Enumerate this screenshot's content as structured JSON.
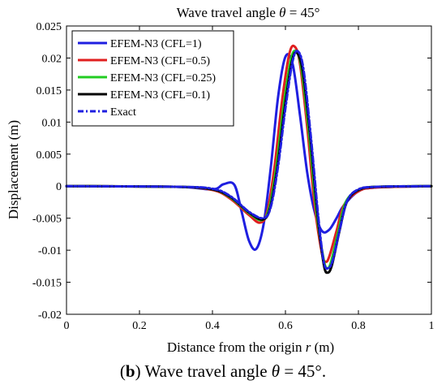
{
  "chart_data": {
    "type": "line",
    "title": "Wave travel angle θ = 45°",
    "title_parts": {
      "text": "Wave travel angle ",
      "symbol": "θ",
      "rest": " = 45°"
    },
    "xlabel": "Distance from the origin r (m)",
    "xlabel_parts": {
      "text": "Distance from the origin ",
      "symbol": "r",
      "rest": " (m)"
    },
    "ylabel": "Displacement (m)",
    "xlim": [
      0,
      1
    ],
    "ylim": [
      -0.02,
      0.025
    ],
    "xticks": [
      0,
      0.2,
      0.4,
      0.6,
      0.8,
      1
    ],
    "xtick_labels": [
      "0",
      "0.2",
      "0.4",
      "0.6",
      "0.8",
      "1"
    ],
    "yticks": [
      -0.02,
      -0.015,
      -0.01,
      -0.005,
      0,
      0.005,
      0.01,
      0.015,
      0.02,
      0.025
    ],
    "ytick_labels": [
      "-0.02",
      "-0.015",
      "-0.01",
      "-0.005",
      "0",
      "0.005",
      "0.01",
      "0.015",
      "0.02",
      "0.025"
    ],
    "grid": false,
    "legend_position": "top-left",
    "series": [
      {
        "name": "EFEM-N3 (CFL=1)",
        "color": "#1f1fe0",
        "dash": "solid",
        "x": [
          0,
          0.3,
          0.4,
          0.43,
          0.46,
          0.48,
          0.5,
          0.52,
          0.54,
          0.56,
          0.58,
          0.6,
          0.62,
          0.64,
          0.66,
          0.68,
          0.7,
          0.72,
          0.74,
          0.76,
          0.8,
          0.85,
          1
        ],
        "y": [
          0,
          -0.0001,
          -0.0005,
          0.0003,
          0.0002,
          -0.004,
          -0.0085,
          -0.0098,
          -0.006,
          0.003,
          0.014,
          0.0202,
          0.019,
          0.011,
          0.002,
          -0.004,
          -0.007,
          -0.0068,
          -0.005,
          -0.003,
          -0.0008,
          -0.0002,
          0
        ]
      },
      {
        "name": "EFEM-N3 (CFL=0.5)",
        "color": "#e01f1f",
        "dash": "solid",
        "x": [
          0,
          0.3,
          0.4,
          0.45,
          0.5,
          0.53,
          0.55,
          0.57,
          0.59,
          0.61,
          0.625,
          0.64,
          0.66,
          0.68,
          0.7,
          0.71,
          0.72,
          0.74,
          0.76,
          0.8,
          0.85,
          1
        ],
        "y": [
          0,
          -0.0001,
          -0.0006,
          -0.002,
          -0.0045,
          -0.0057,
          -0.004,
          0.003,
          0.013,
          0.0205,
          0.0218,
          0.019,
          0.009,
          -0.003,
          -0.0105,
          -0.0118,
          -0.011,
          -0.007,
          -0.003,
          -0.0008,
          -0.0002,
          0
        ]
      },
      {
        "name": "EFEM-N3 (CFL=0.25)",
        "color": "#22cc22",
        "dash": "solid",
        "x": [
          0,
          0.3,
          0.4,
          0.45,
          0.5,
          0.535,
          0.555,
          0.575,
          0.595,
          0.615,
          0.63,
          0.645,
          0.665,
          0.685,
          0.705,
          0.715,
          0.725,
          0.745,
          0.765,
          0.8,
          0.85,
          1
        ],
        "y": [
          0,
          -0.0001,
          -0.0005,
          -0.0018,
          -0.0042,
          -0.0053,
          -0.0035,
          0.003,
          0.0125,
          0.0198,
          0.021,
          0.018,
          0.008,
          -0.004,
          -0.0115,
          -0.0128,
          -0.0118,
          -0.007,
          -0.0025,
          -0.0006,
          -0.0001,
          0
        ]
      },
      {
        "name": "EFEM-N3 (CFL=0.1)",
        "color": "#000000",
        "dash": "solid",
        "x": [
          0,
          0.3,
          0.4,
          0.45,
          0.5,
          0.538,
          0.558,
          0.578,
          0.598,
          0.618,
          0.632,
          0.648,
          0.668,
          0.688,
          0.705,
          0.716,
          0.728,
          0.748,
          0.768,
          0.8,
          0.85,
          1
        ],
        "y": [
          0,
          -0.0001,
          -0.0005,
          -0.0017,
          -0.0041,
          -0.0052,
          -0.0034,
          0.003,
          0.0122,
          0.0195,
          0.0208,
          0.0178,
          0.0078,
          -0.0045,
          -0.0122,
          -0.0135,
          -0.0122,
          -0.007,
          -0.0025,
          -0.0006,
          -0.0001,
          0
        ]
      },
      {
        "name": "Exact",
        "color": "#1f1fe0",
        "dash": "dashdot",
        "x": [
          0,
          0.3,
          0.4,
          0.45,
          0.5,
          0.54,
          0.56,
          0.58,
          0.6,
          0.62,
          0.635,
          0.65,
          0.67,
          0.69,
          0.705,
          0.717,
          0.73,
          0.75,
          0.77,
          0.8,
          0.85,
          1
        ],
        "y": [
          0,
          -0.0001,
          -0.0004,
          -0.0016,
          -0.004,
          -0.005,
          -0.0032,
          0.0032,
          0.0122,
          0.0196,
          0.021,
          0.018,
          0.0075,
          -0.0048,
          -0.0118,
          -0.0128,
          -0.0115,
          -0.0065,
          -0.0022,
          -0.0005,
          -0.0001,
          0
        ]
      }
    ]
  },
  "caption": {
    "label": "b",
    "text": " Wave travel angle ",
    "symbol": "θ",
    "rest": " = 45°."
  }
}
